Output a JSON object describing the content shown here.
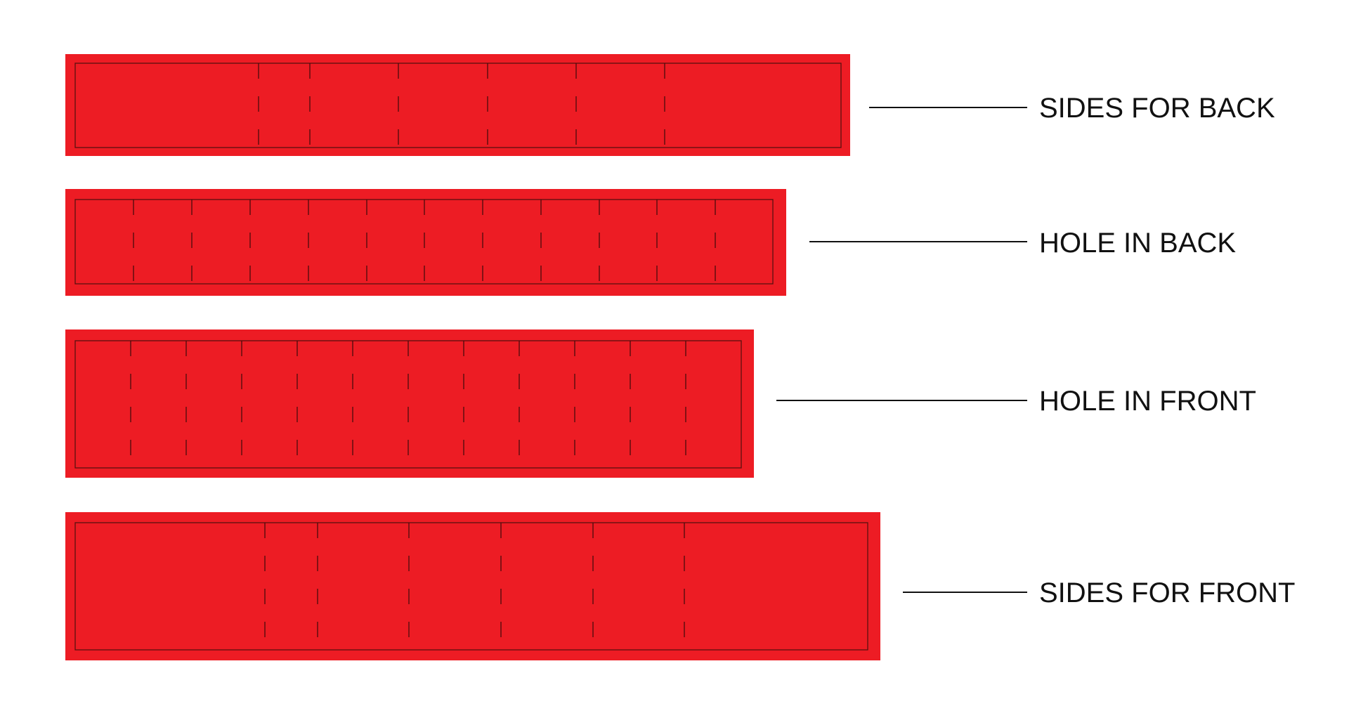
{
  "colors": {
    "strip_fill": "#ED1C24",
    "outline": "#5A1010",
    "fold_line": "#4A0C0C",
    "text": "#111111",
    "background": "#FFFFFF"
  },
  "strips": [
    {
      "label": "SIDES FOR BACK"
    },
    {
      "label": "HOLE IN BACK"
    },
    {
      "label": "HOLE IN FRONT"
    },
    {
      "label": "SIDES FOR FRONT"
    }
  ]
}
